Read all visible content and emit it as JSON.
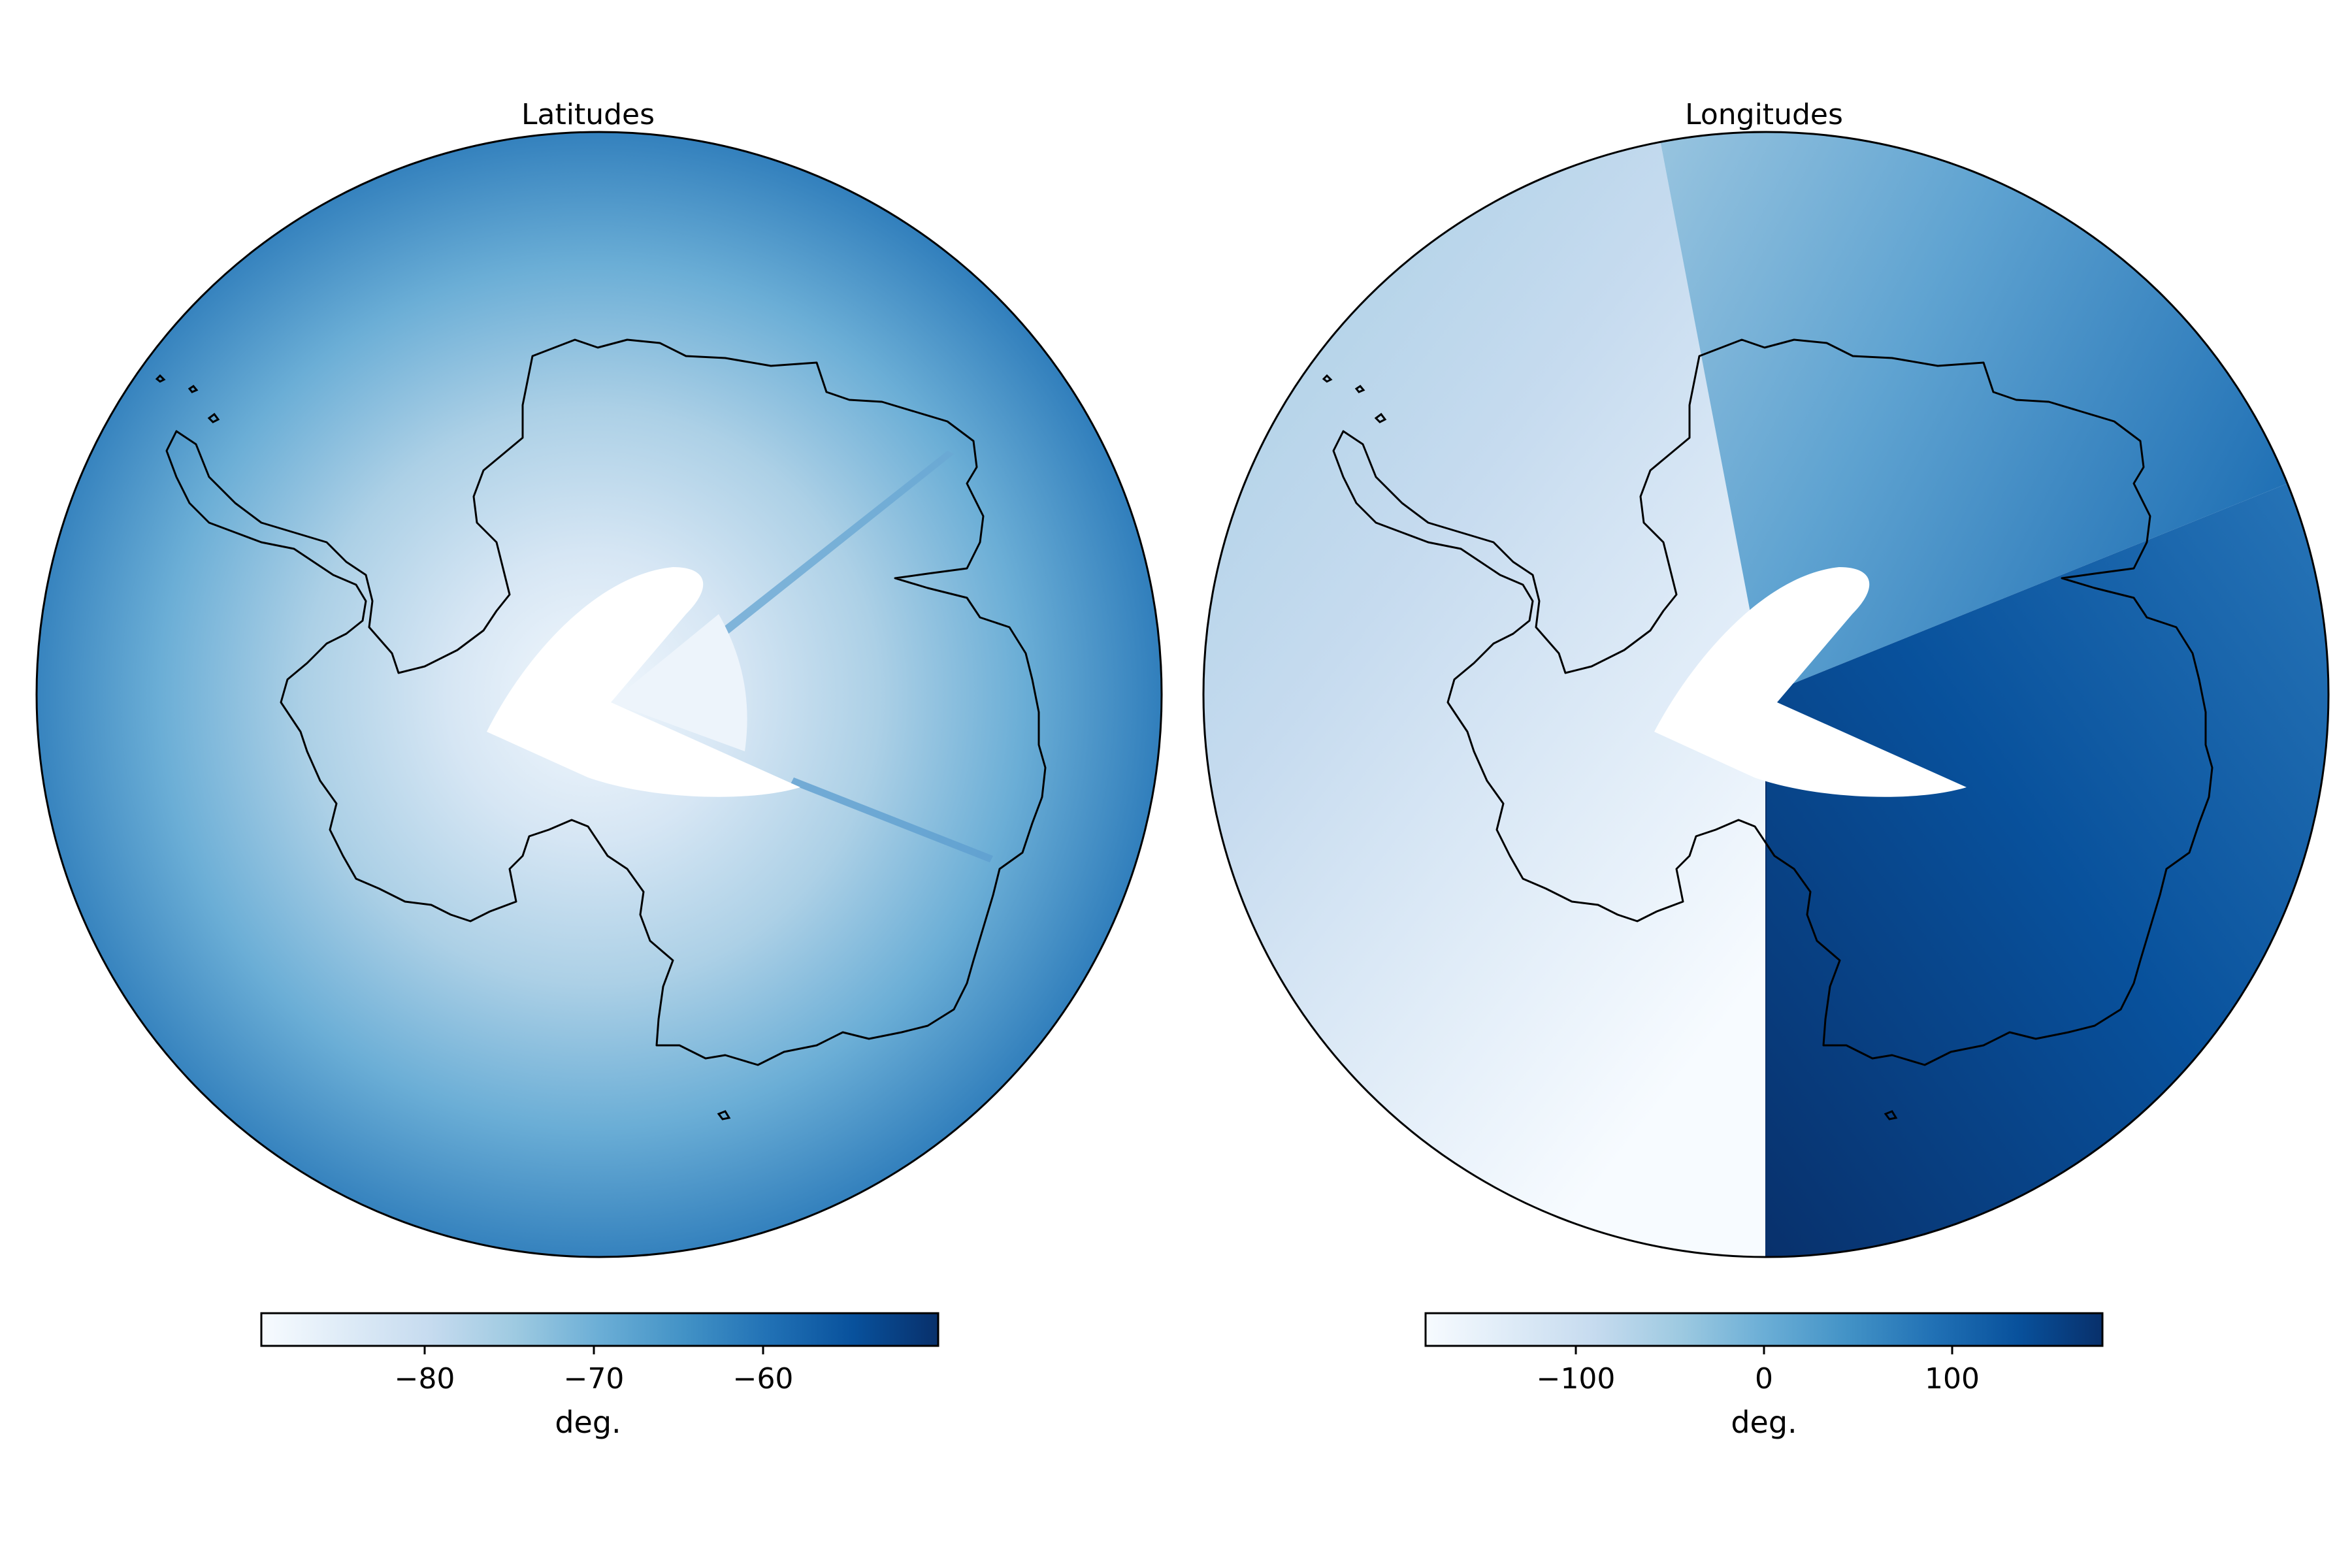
{
  "panels": [
    {
      "id": "latitudes",
      "title": "Latitudes",
      "colorbar": {
        "label": "deg.",
        "ticks": [
          "−80",
          "−70",
          "−60"
        ],
        "tick_values": [
          -80,
          -70,
          -60
        ],
        "range": [
          -90,
          -50
        ],
        "colormap": "Blues"
      }
    },
    {
      "id": "longitudes",
      "title": "Longitudes",
      "colorbar": {
        "label": "deg.",
        "ticks": [
          "−100",
          "0",
          "100"
        ],
        "tick_values": [
          -100,
          0,
          100
        ],
        "range": [
          -180,
          180
        ],
        "colormap": "Blues"
      }
    }
  ],
  "colors": {
    "blues_light": "#f7fbff",
    "blues_mid": "#6baed6",
    "blues_dark": "#08306b",
    "coastline": "#000000"
  }
}
